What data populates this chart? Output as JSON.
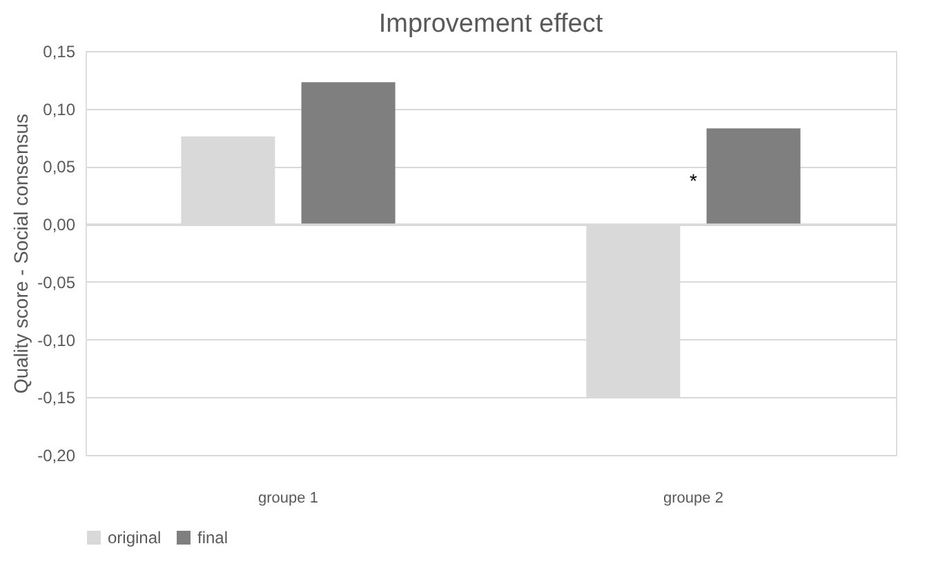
{
  "chart_data": {
    "type": "bar",
    "title": "Improvement effect",
    "ylabel": "Quality score - Social consensus",
    "categories": [
      "groupe 1",
      "groupe 2"
    ],
    "series": [
      {
        "name": "original",
        "color": "#d9d9d9",
        "values": [
          0.076,
          -0.15
        ]
      },
      {
        "name": "final",
        "color": "#7f7f7f",
        "values": [
          0.123,
          0.083
        ]
      }
    ],
    "ylim": [
      -0.2,
      0.15
    ],
    "yticks": [
      {
        "value": -0.2,
        "label": "-0,20"
      },
      {
        "value": -0.15,
        "label": "-0,15"
      },
      {
        "value": -0.1,
        "label": "-0,10"
      },
      {
        "value": -0.05,
        "label": "-0,05"
      },
      {
        "value": 0,
        "label": "0,00"
      },
      {
        "value": 0.05,
        "label": "0,05"
      },
      {
        "value": 0.1,
        "label": "0,10"
      },
      {
        "value": 0.15,
        "label": "0,15"
      }
    ],
    "grid": "y",
    "legend": "bottom",
    "annotations": [
      "*"
    ]
  }
}
